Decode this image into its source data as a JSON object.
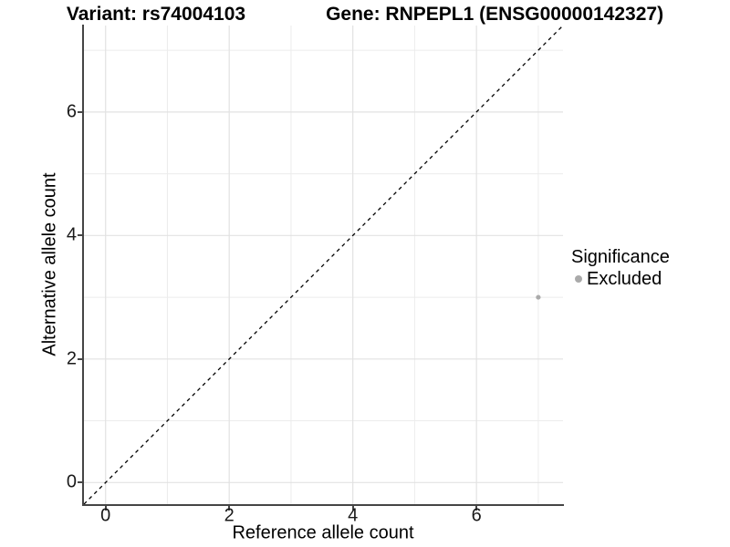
{
  "title": {
    "variant_label": "Variant: rs74004103",
    "gene_label": "Gene: RNPEPL1 (ENSG00000142327)"
  },
  "chart_data": {
    "type": "scatter",
    "title": "Variant: rs74004103  Gene: RNPEPL1 (ENSG00000142327)",
    "xlabel": "Reference allele count",
    "ylabel": "Alternative allele count",
    "xlim": [
      -0.35,
      7.4
    ],
    "ylim": [
      -0.35,
      7.4
    ],
    "x_ticks": [
      0,
      2,
      4,
      6
    ],
    "y_ticks": [
      0,
      2,
      4,
      6
    ],
    "x_minor_ticks": [
      1,
      3,
      5,
      7
    ],
    "y_minor_ticks": [
      1,
      3,
      5,
      7
    ],
    "grid": true,
    "identity_line": {
      "style": "dashed",
      "from_xy": [
        -0.35,
        -0.35
      ],
      "to_xy": [
        7.4,
        7.4
      ],
      "color": "#000000"
    },
    "points": [
      {
        "x": 7,
        "y": 3,
        "significance": "Excluded",
        "color": "#aaaaaa",
        "radius": 2.6
      }
    ],
    "legend": {
      "title": "Significance",
      "position": "right",
      "entries": [
        {
          "label": "Excluded",
          "color": "#aaaaaa"
        }
      ]
    },
    "style": {
      "grid_major_color": "#e2e2e2",
      "grid_minor_color": "#ececec",
      "axis_line_color": "#454545",
      "background": "#ffffff"
    }
  }
}
